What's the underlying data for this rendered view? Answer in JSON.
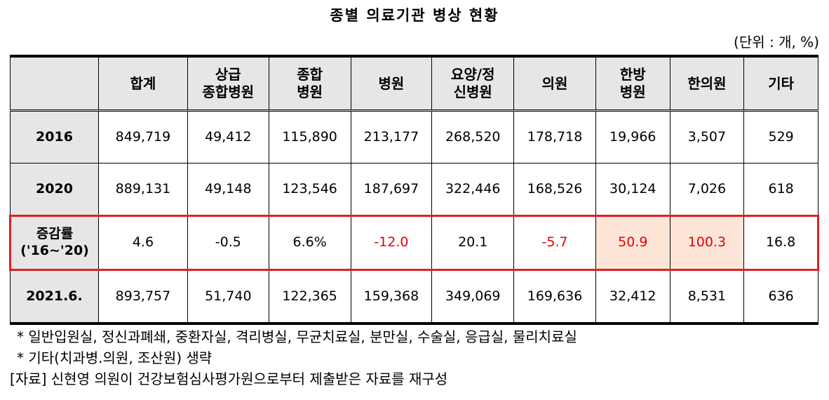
{
  "title": "종별 의료기관 병상 현황",
  "unit": "(단위 : 개, %)",
  "columns": [
    {
      "line1": "",
      "line2": ""
    },
    {
      "line1": "합계",
      "line2": ""
    },
    {
      "line1": "상급",
      "line2": "종합병원"
    },
    {
      "line1": "종합",
      "line2": "병원"
    },
    {
      "line1": "병원",
      "line2": ""
    },
    {
      "line1": "요양/정",
      "line2": "신병원"
    },
    {
      "line1": "의원",
      "line2": ""
    },
    {
      "line1": "한방",
      "line2": "병원"
    },
    {
      "line1": "한의원",
      "line2": ""
    },
    {
      "line1": "기타",
      "line2": ""
    }
  ],
  "rows": [
    {
      "label1": "2016",
      "label2": "",
      "values": [
        "849,719",
        "49,412",
        "115,890",
        "213,177",
        "268,520",
        "178,718",
        "19,966",
        "3,507",
        "529"
      ]
    },
    {
      "label1": "2020",
      "label2": "",
      "values": [
        "889,131",
        "49,148",
        "123,546",
        "187,697",
        "322,446",
        "168,526",
        "30,124",
        "7,026",
        "618"
      ]
    },
    {
      "label1": "증감률",
      "label2": "('16~'20)",
      "values": [
        "4.6",
        "-0.5",
        "6.6%",
        "-12.0",
        "20.1",
        "-5.7",
        "50.9",
        "100.3",
        "16.8"
      ]
    },
    {
      "label1": "2021.6.",
      "label2": "",
      "values": [
        "893,757",
        "51,740",
        "122,365",
        "159,368",
        "349,069",
        "169,636",
        "32,412",
        "8,531",
        "636"
      ]
    }
  ],
  "colors": {
    "negative": "#e60000",
    "highlight_bg": "#fde5d8",
    "rate_border": "#e02020",
    "header_bg": "#e6e6e6"
  },
  "notes": [
    "* 일반입원실, 정신과폐쇄, 중환자실, 격리병실, 무균치료실, 분만실, 수술실, 응급실, 물리치료실",
    "* 기타(치과병.의원, 조산원) 생략",
    "[자료] 신현영 의원이 건강보험심사평가원으로부터 제출받은 자료를 재구성"
  ]
}
